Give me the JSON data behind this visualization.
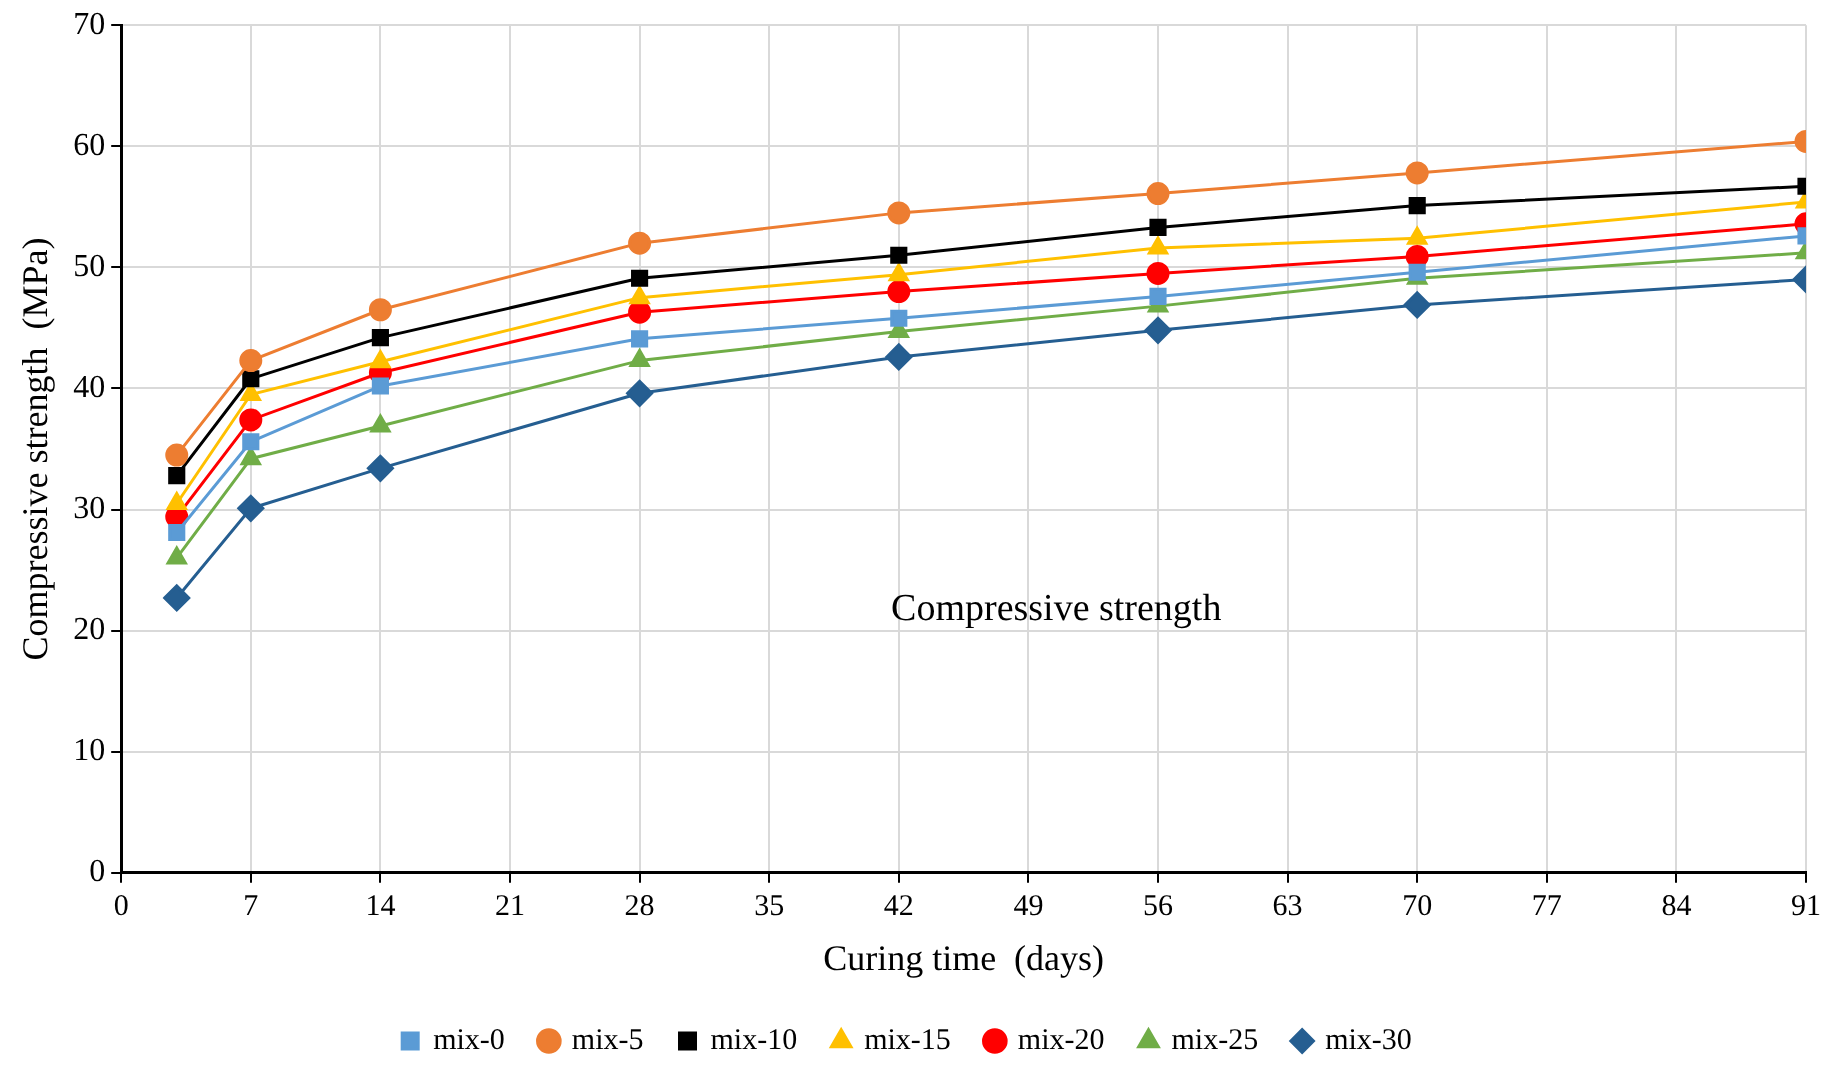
{
  "chart_data": {
    "type": "line",
    "xlabel": "Curing time  (days)",
    "ylabel": "Compressive strength  (MPa)",
    "annotations": [
      "Compressive strength"
    ],
    "x": [
      3,
      7,
      14,
      28,
      42,
      56,
      70,
      91
    ],
    "xlim": [
      0,
      91
    ],
    "xticks": [
      0,
      7,
      14,
      21,
      28,
      35,
      42,
      49,
      56,
      63,
      70,
      77,
      84,
      91
    ],
    "ylim": [
      0,
      70
    ],
    "yticks": [
      0,
      10,
      20,
      30,
      40,
      50,
      60,
      70
    ],
    "grid": true,
    "legend": "bottom",
    "series": [
      {
        "name": "mix-0",
        "color": "#5b9bd5",
        "marker": "square",
        "values": [
          28.1,
          35.6,
          40.2,
          44.1,
          45.8,
          47.6,
          49.6,
          52.6
        ]
      },
      {
        "name": "mix-5",
        "color": "#ed7d31",
        "marker": "circle",
        "values": [
          34.5,
          42.3,
          46.5,
          52,
          54.5,
          56.1,
          57.8,
          60.4
        ]
      },
      {
        "name": "mix-10",
        "color": "#000000",
        "marker": "square",
        "values": [
          32.8,
          40.8,
          44.2,
          49.1,
          51,
          53.3,
          55.1,
          56.7
        ]
      },
      {
        "name": "mix-15",
        "color": "#ffc000",
        "marker": "triangle",
        "values": [
          30.5,
          39.5,
          42.2,
          47.5,
          49.4,
          51.6,
          52.4,
          55.4
        ]
      },
      {
        "name": "mix-20",
        "color": "#ff0000",
        "marker": "circle",
        "values": [
          29.4,
          37.4,
          41.3,
          46.3,
          48,
          49.5,
          50.9,
          53.6
        ]
      },
      {
        "name": "mix-25",
        "color": "#70ad47",
        "marker": "triangle",
        "values": [
          26,
          34.2,
          36.9,
          42.3,
          44.7,
          46.8,
          49.1,
          51.2
        ]
      },
      {
        "name": "mix-30",
        "color": "#255e91",
        "marker": "diamond",
        "values": [
          22.7,
          30.1,
          33.4,
          39.6,
          42.6,
          44.8,
          46.9,
          49
        ]
      }
    ]
  }
}
